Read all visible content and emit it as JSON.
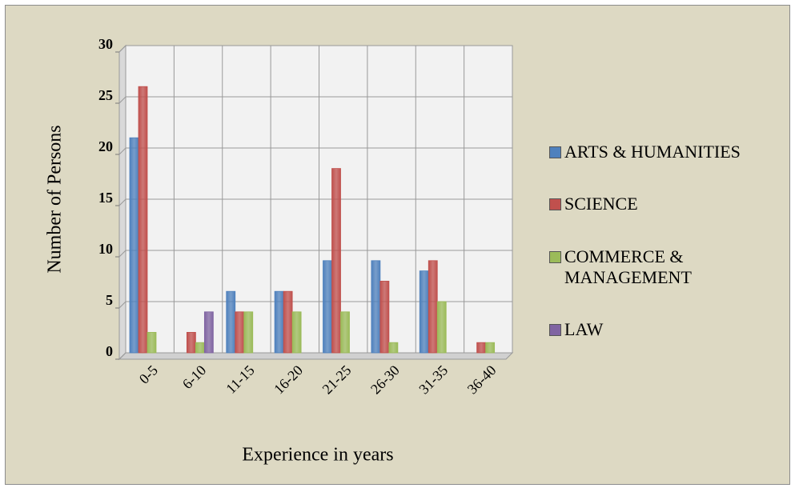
{
  "chart_data": {
    "type": "bar",
    "categories": [
      "0-5",
      "6-10",
      "11-15",
      "16-20",
      "21-25",
      "26-30",
      "31-35",
      "36-40"
    ],
    "series": [
      {
        "name": "ARTS & HUMANITIES",
        "color": "#4f81bd",
        "values": [
          21,
          0,
          6,
          6,
          9,
          9,
          8,
          0
        ]
      },
      {
        "name": "SCIENCE",
        "color": "#c0504d",
        "values": [
          26,
          2,
          4,
          6,
          18,
          7,
          9,
          1
        ]
      },
      {
        "name": "COMMERCE & MANAGEMENT",
        "color": "#9bbb59",
        "values": [
          2,
          1,
          4,
          4,
          4,
          1,
          5,
          1
        ]
      },
      {
        "name": "LAW",
        "color": "#8064a2",
        "values": [
          0,
          4,
          0,
          0,
          0,
          0,
          0,
          0
        ]
      }
    ],
    "ylim": [
      0,
      30
    ],
    "yticks": [
      0,
      5,
      10,
      15,
      20,
      25,
      30
    ],
    "y_label": "Number of Persons",
    "x_label": "Experience in years",
    "grid": true,
    "legend": "right"
  }
}
